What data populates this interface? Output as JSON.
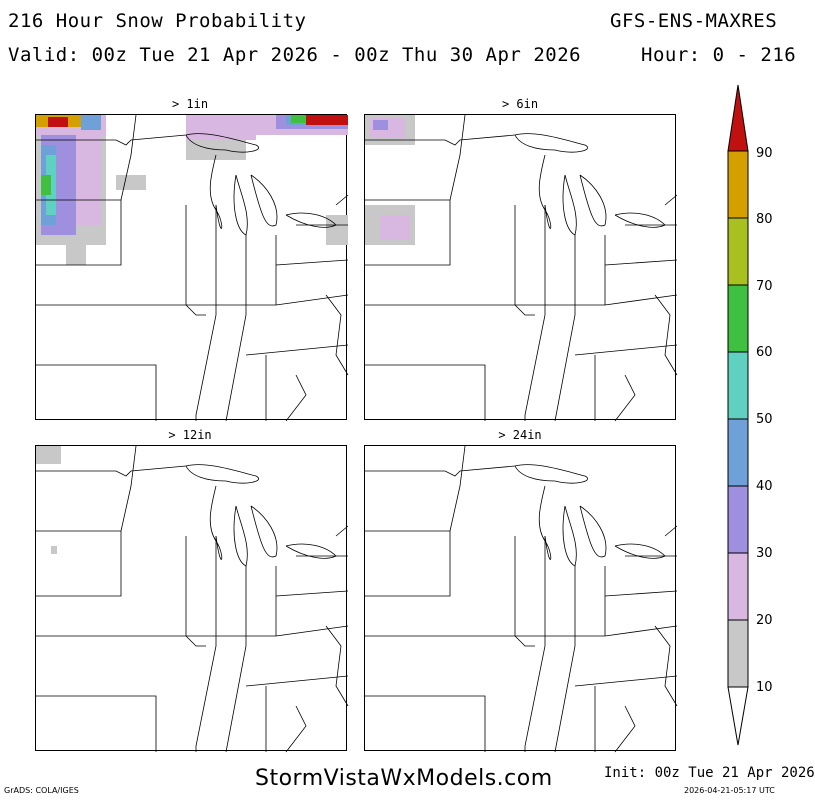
{
  "header": {
    "title": "216 Hour Snow Probability",
    "model": "GFS-ENS-MAXRES",
    "valid": "Valid: 00z Tue 21 Apr 2026 - 00z Thu 30 Apr 2026",
    "hour": "Hour: 0 - 216"
  },
  "panels": [
    {
      "label": "> 1in"
    },
    {
      "label": "> 6in"
    },
    {
      "label": "> 12in"
    },
    {
      "label": "> 24in"
    }
  ],
  "colorbar": {
    "labels": [
      "90",
      "80",
      "70",
      "60",
      "50",
      "40",
      "30",
      "20",
      "10"
    ],
    "colors": [
      "#d4a000",
      "#a8c020",
      "#40c040",
      "#60d0c0",
      "#70a0d8",
      "#9f8fdf",
      "#d8b8e0",
      "#c8c8c8"
    ],
    "top_color": "#c01010"
  },
  "footer": {
    "grads": "GrADS: COLA/IGES",
    "site": "StormVistaWxModels.com",
    "init": "Init: 00z Tue 21 Apr 2026",
    "stamp": "2026-04-21-05:17 UTC"
  }
}
